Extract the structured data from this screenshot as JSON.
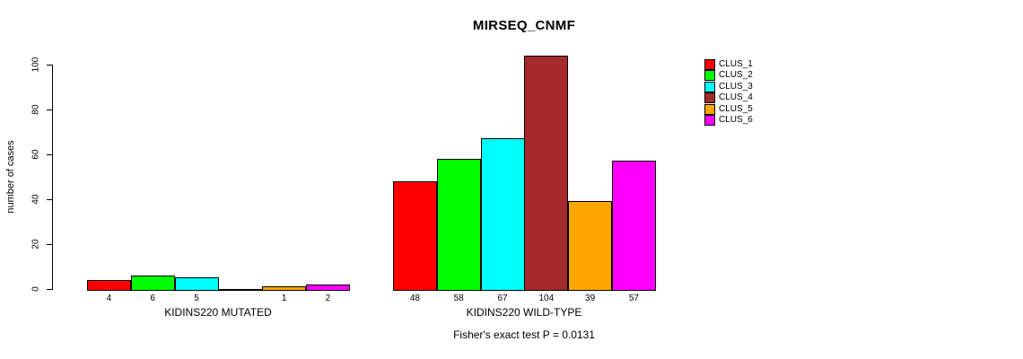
{
  "title": "MIRSEQ_CNMF",
  "footer_note": "Fisher's exact test P = 0.0131",
  "legend": {
    "items": [
      {
        "label": "CLUS_1",
        "color": "#FF0000"
      },
      {
        "label": "CLUS_2",
        "color": "#00FF00"
      },
      {
        "label": "CLUS_3",
        "color": "#00FFFF"
      },
      {
        "label": "CLUS_4",
        "color": "#A52A2A"
      },
      {
        "label": "CLUS_5",
        "color": "#FFA500"
      },
      {
        "label": "CLUS_6",
        "color": "#FF00FF"
      }
    ]
  },
  "chart_data": {
    "type": "bar",
    "title": "MIRSEQ_CNMF",
    "xlabel": "",
    "ylabel": "number of cases",
    "yticks": [
      0,
      20,
      40,
      60,
      80,
      100
    ],
    "ylim": [
      0,
      104
    ],
    "grid": false,
    "legend_position": "top-right-outside",
    "series_names": [
      "CLUS_1",
      "CLUS_2",
      "CLUS_3",
      "CLUS_4",
      "CLUS_5",
      "CLUS_6"
    ],
    "colors": [
      "#FF0000",
      "#00FF00",
      "#00FFFF",
      "#A52A2A",
      "#FFA500",
      "#FF00FF"
    ],
    "groups": [
      {
        "label": "KIDINS220 MUTATED",
        "values": [
          4,
          6,
          5,
          0,
          1,
          2
        ],
        "bar_labels": [
          "4",
          "6",
          "5",
          "",
          "1",
          "2"
        ]
      },
      {
        "label": "KIDINS220 WILD-TYPE",
        "values": [
          48,
          58,
          67,
          104,
          39,
          57
        ],
        "bar_labels": [
          "48",
          "58",
          "67",
          "104",
          "39",
          "57"
        ]
      }
    ],
    "annotation": "Fisher's exact test P = 0.0131"
  }
}
